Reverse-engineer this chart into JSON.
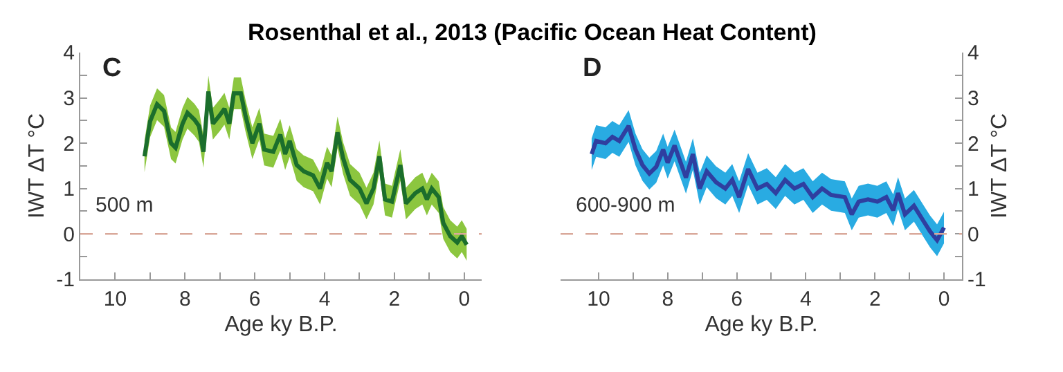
{
  "chart_data": [
    {
      "type": "line",
      "title": "Rosenthal et al., 2013 (Pacific Ocean Heat Content)",
      "xlabel": "Age ky B.P.",
      "ylabel": "IWT ΔT °C",
      "annotations": [
        "C",
        "500 m"
      ],
      "xlim": [
        11.0,
        -0.5
      ],
      "xticks": [
        10,
        {
          "value": 9,
          "label": null
        },
        8,
        {
          "value": 7,
          "label": null
        },
        6,
        {
          "value": 5,
          "label": null
        },
        4,
        {
          "value": 3,
          "label": null
        },
        2,
        {
          "value": 1,
          "label": null
        },
        0
      ],
      "ylim": [
        -1,
        4
      ],
      "yticks": [
        -1,
        {
          "value": -0.5,
          "label": null
        },
        0,
        {
          "value": 0.5,
          "label": null
        },
        1,
        {
          "value": 1.5,
          "label": null
        },
        2,
        {
          "value": 2.5,
          "label": null
        },
        3,
        {
          "value": 3.5,
          "label": null
        },
        4
      ],
      "marker": "none",
      "line_style": "solid",
      "ref_lines": [
        {
          "axis": "y",
          "value": 0,
          "color": "#d9a89a",
          "line_style": "dashed"
        }
      ],
      "series": [
        {
          "color": "#1b6e2c",
          "x": [
            9.16,
            9.0,
            8.8,
            8.6,
            8.4,
            8.27,
            8.07,
            7.93,
            7.73,
            7.6,
            7.47,
            7.33,
            7.2,
            7.0,
            6.87,
            6.73,
            6.6,
            6.4,
            6.27,
            6.07,
            5.87,
            5.73,
            5.47,
            5.27,
            5.13,
            5.0,
            4.8,
            4.6,
            4.33,
            4.13,
            3.93,
            3.8,
            3.63,
            3.47,
            3.27,
            3.0,
            2.8,
            2.6,
            2.43,
            2.27,
            2.07,
            1.83,
            1.67,
            1.4,
            1.2,
            1.07,
            0.93,
            0.73,
            0.6,
            0.4,
            0.2,
            0.07,
            -0.07
          ],
          "values": [
            1.71,
            2.48,
            2.86,
            2.71,
            2.0,
            1.9,
            2.43,
            2.67,
            2.52,
            2.38,
            1.81,
            3.14,
            2.43,
            2.62,
            2.76,
            2.43,
            3.1,
            3.1,
            2.62,
            2.0,
            2.43,
            1.86,
            1.81,
            2.19,
            1.76,
            2.05,
            1.52,
            1.38,
            1.29,
            1.0,
            1.57,
            1.38,
            2.24,
            1.67,
            1.19,
            1.0,
            0.67,
            1.0,
            1.71,
            0.76,
            0.71,
            1.52,
            0.67,
            0.9,
            1.0,
            0.76,
            1.0,
            0.81,
            0.24,
            -0.05,
            -0.19,
            -0.05,
            -0.24
          ],
          "lower": [
            1.36,
            2.13,
            2.51,
            2.36,
            1.65,
            1.55,
            2.08,
            2.32,
            2.17,
            2.03,
            1.46,
            2.79,
            2.08,
            2.27,
            2.41,
            2.08,
            2.75,
            2.75,
            2.27,
            1.65,
            2.08,
            1.51,
            1.46,
            1.84,
            1.41,
            1.7,
            1.17,
            1.03,
            0.94,
            0.65,
            1.22,
            1.03,
            1.89,
            1.32,
            0.84,
            0.65,
            0.32,
            0.65,
            1.36,
            0.41,
            0.36,
            1.17,
            0.32,
            0.55,
            0.65,
            0.41,
            0.65,
            0.46,
            -0.11,
            -0.4,
            -0.54,
            -0.4,
            -0.59
          ],
          "upper": [
            2.06,
            2.83,
            3.21,
            3.06,
            2.35,
            2.25,
            2.78,
            3.02,
            2.87,
            2.73,
            2.16,
            3.49,
            2.78,
            2.97,
            3.11,
            2.78,
            3.45,
            3.45,
            2.97,
            2.35,
            2.78,
            2.21,
            2.16,
            2.54,
            2.11,
            2.4,
            1.87,
            1.73,
            1.64,
            1.35,
            1.92,
            1.73,
            2.59,
            2.02,
            1.54,
            1.35,
            1.02,
            1.35,
            2.06,
            1.11,
            1.06,
            1.87,
            1.02,
            1.25,
            1.35,
            1.11,
            1.35,
            1.16,
            0.59,
            0.3,
            0.16,
            0.3,
            0.11
          ]
        }
      ]
    },
    {
      "type": "line",
      "xlabel": "Age ky B.P.",
      "y2label": "IWT ΔT °C",
      "annotations": [
        "D",
        "600-900 m"
      ],
      "xlim": [
        11.1,
        -0.52
      ],
      "xticks": [
        10,
        {
          "value": 9,
          "label": null
        },
        8,
        {
          "value": 7,
          "label": null
        },
        6,
        {
          "value": 5,
          "label": null
        },
        4,
        {
          "value": 3,
          "label": null
        },
        2,
        {
          "value": 1,
          "label": null
        },
        0
      ],
      "y2lim": [
        -1,
        4
      ],
      "y2ticks": [
        -1,
        {
          "value": -0.5,
          "label": null
        },
        0,
        {
          "value": 0.5,
          "label": null
        },
        1,
        {
          "value": 1.5,
          "label": null
        },
        2,
        {
          "value": 2.5,
          "label": null
        },
        3,
        {
          "value": 3.5,
          "label": null
        },
        4
      ],
      "marker": "none",
      "line_style": "solid",
      "ref_lines": [
        {
          "axis": "y2",
          "value": 0,
          "color": "#d9a89a",
          "line_style": "dashed"
        }
      ],
      "series": [
        {
          "color": "#2f3fa0",
          "axis": "y2",
          "x": [
            10.2,
            10.07,
            9.8,
            9.6,
            9.4,
            9.13,
            8.93,
            8.73,
            8.53,
            8.33,
            8.13,
            8.0,
            7.8,
            7.67,
            7.47,
            7.27,
            7.07,
            6.87,
            6.6,
            6.33,
            6.13,
            5.93,
            5.67,
            5.4,
            5.13,
            4.87,
            4.6,
            4.33,
            4.07,
            3.8,
            3.53,
            3.27,
            2.87,
            2.67,
            2.47,
            2.2,
            1.93,
            1.67,
            1.47,
            1.33,
            1.13,
            0.87,
            0.6,
            0.4,
            0.2,
            0.0
          ],
          "values": [
            1.76,
            2.05,
            2.0,
            2.14,
            2.05,
            2.38,
            1.86,
            1.52,
            1.33,
            1.48,
            1.86,
            1.57,
            1.95,
            1.67,
            1.24,
            1.76,
            1.0,
            1.38,
            1.14,
            1.0,
            1.19,
            0.81,
            1.43,
            1.0,
            1.1,
            0.9,
            1.19,
            1.0,
            1.1,
            0.81,
            1.0,
            0.86,
            0.81,
            0.43,
            0.71,
            0.76,
            0.71,
            0.81,
            0.52,
            0.9,
            0.43,
            0.62,
            0.29,
            0.05,
            -0.14,
            0.14
          ],
          "lower": [
            1.41,
            1.7,
            1.65,
            1.79,
            1.7,
            2.03,
            1.51,
            1.17,
            0.98,
            1.13,
            1.51,
            1.22,
            1.6,
            1.32,
            0.89,
            1.41,
            0.65,
            1.03,
            0.79,
            0.65,
            0.84,
            0.46,
            1.08,
            0.65,
            0.75,
            0.55,
            0.84,
            0.65,
            0.75,
            0.46,
            0.65,
            0.51,
            0.46,
            0.08,
            0.36,
            0.41,
            0.36,
            0.46,
            0.17,
            0.55,
            0.08,
            0.27,
            -0.06,
            -0.3,
            -0.49,
            -0.21
          ],
          "upper": [
            2.11,
            2.4,
            2.35,
            2.49,
            2.4,
            2.73,
            2.21,
            1.87,
            1.68,
            1.83,
            2.21,
            1.92,
            2.3,
            2.02,
            1.59,
            2.11,
            1.35,
            1.73,
            1.49,
            1.35,
            1.54,
            1.16,
            1.78,
            1.35,
            1.45,
            1.25,
            1.54,
            1.35,
            1.45,
            1.16,
            1.35,
            1.21,
            1.16,
            0.78,
            1.06,
            1.11,
            1.06,
            1.16,
            0.87,
            1.25,
            0.78,
            0.97,
            0.64,
            0.4,
            0.21,
            0.49
          ]
        }
      ]
    }
  ]
}
